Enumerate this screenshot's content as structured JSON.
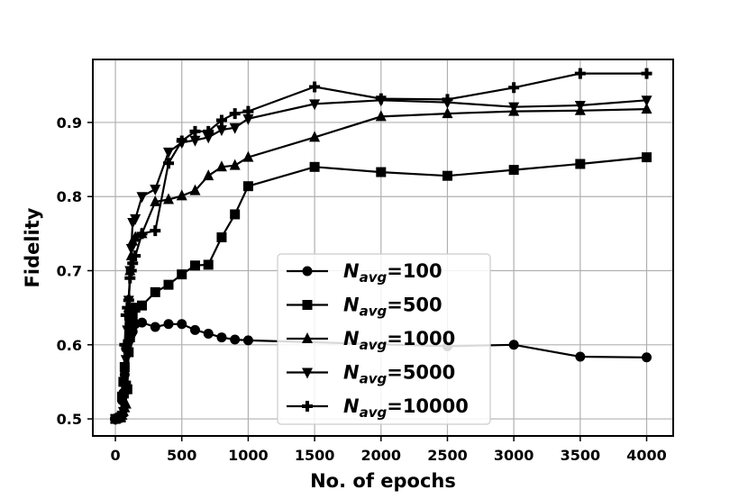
{
  "chart_data": {
    "type": "line",
    "title": "",
    "xlabel": "No. of epochs",
    "ylabel": "Fidelity",
    "xlim": [
      -170,
      4200
    ],
    "ylim": [
      0.477,
      0.985
    ],
    "xticks": [
      0,
      500,
      1000,
      1500,
      2000,
      2500,
      3000,
      3500,
      4000
    ],
    "yticks": [
      0.5,
      0.6,
      0.7,
      0.8,
      0.9
    ],
    "grid": true,
    "legend_position": "lower-center",
    "series": [
      {
        "name": "N_avg=100",
        "name_base": "N",
        "name_sub": "avg",
        "name_value": "=100",
        "marker": "circle",
        "x": [
          0,
          40,
          50,
          60,
          70,
          80,
          90,
          100,
          110,
          120,
          130,
          150,
          200,
          300,
          400,
          500,
          600,
          700,
          800,
          900,
          1000,
          2500,
          3000,
          3500,
          4000
        ],
        "y": [
          0.5,
          0.505,
          0.525,
          0.535,
          0.56,
          0.595,
          0.6,
          0.605,
          0.61,
          0.615,
          0.618,
          0.628,
          0.63,
          0.624,
          0.628,
          0.628,
          0.62,
          0.615,
          0.61,
          0.607,
          0.606,
          0.598,
          0.6,
          0.584,
          0.583
        ]
      },
      {
        "name": "N_avg=500",
        "name_base": "N",
        "name_sub": "avg",
        "name_value": "=500",
        "marker": "square",
        "x": [
          0,
          40,
          50,
          60,
          70,
          80,
          90,
          100,
          110,
          120,
          130,
          150,
          200,
          300,
          400,
          500,
          600,
          700,
          800,
          900,
          1000,
          1500,
          2000,
          2500,
          3000,
          3500,
          4000
        ],
        "y": [
          0.5,
          0.502,
          0.53,
          0.55,
          0.57,
          0.545,
          0.54,
          0.59,
          0.61,
          0.63,
          0.64,
          0.65,
          0.653,
          0.671,
          0.681,
          0.695,
          0.707,
          0.708,
          0.745,
          0.776,
          0.814,
          0.84,
          0.833,
          0.828,
          0.836,
          0.844,
          0.853
        ]
      },
      {
        "name": "N_avg=1000",
        "name_base": "N",
        "name_sub": "avg",
        "name_value": "=1000",
        "marker": "triangle-up",
        "x": [
          0,
          40,
          50,
          60,
          70,
          80,
          90,
          100,
          110,
          120,
          130,
          150,
          200,
          300,
          400,
          500,
          600,
          700,
          800,
          900,
          1000,
          1500,
          2000,
          2500,
          3000,
          3500,
          4000
        ],
        "y": [
          0.5,
          0.502,
          0.505,
          0.51,
          0.515,
          0.52,
          0.6,
          0.65,
          0.7,
          0.72,
          0.74,
          0.745,
          0.75,
          0.793,
          0.796,
          0.801,
          0.808,
          0.828,
          0.84,
          0.842,
          0.853,
          0.88,
          0.908,
          0.912,
          0.915,
          0.916,
          0.918
        ]
      },
      {
        "name": "N_avg=5000",
        "name_base": "N",
        "name_sub": "avg",
        "name_value": "=5000",
        "marker": "triangle-down",
        "x": [
          0,
          40,
          50,
          60,
          70,
          80,
          90,
          100,
          110,
          120,
          130,
          150,
          200,
          300,
          400,
          500,
          600,
          700,
          800,
          900,
          1000,
          1500,
          2000,
          2500,
          3000,
          3500,
          4000
        ],
        "y": [
          0.5,
          0.502,
          0.505,
          0.51,
          0.53,
          0.58,
          0.62,
          0.66,
          0.7,
          0.73,
          0.765,
          0.77,
          0.8,
          0.81,
          0.86,
          0.873,
          0.876,
          0.88,
          0.89,
          0.893,
          0.905,
          0.925,
          0.93,
          0.927,
          0.921,
          0.923,
          0.93
        ]
      },
      {
        "name": "N_avg=10000",
        "name_base": "N",
        "name_sub": "avg",
        "name_value": "=10000",
        "marker": "plus",
        "x": [
          0,
          40,
          50,
          60,
          70,
          80,
          90,
          100,
          110,
          120,
          130,
          150,
          200,
          300,
          400,
          500,
          600,
          700,
          800,
          900,
          1000,
          1500,
          2000,
          2500,
          3000,
          3500,
          4000
        ],
        "y": [
          0.5,
          0.502,
          0.505,
          0.53,
          0.6,
          0.64,
          0.65,
          0.66,
          0.69,
          0.7,
          0.71,
          0.72,
          0.75,
          0.754,
          0.845,
          0.875,
          0.888,
          0.888,
          0.903,
          0.912,
          0.915,
          0.948,
          0.932,
          0.931,
          0.947,
          0.966,
          0.966
        ]
      }
    ]
  }
}
